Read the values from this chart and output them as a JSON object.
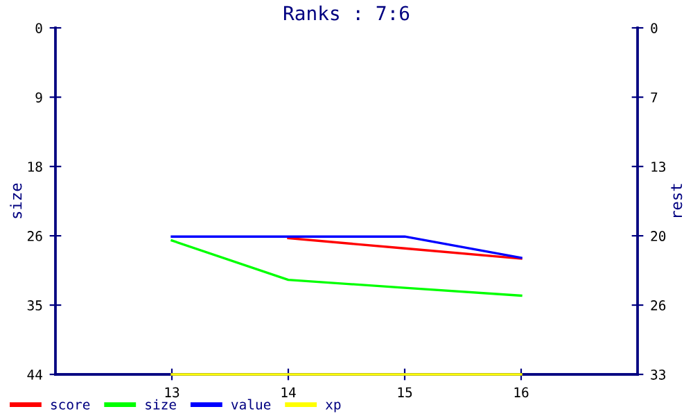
{
  "chart_data": {
    "type": "line",
    "title": "Ranks : 7:6",
    "ylabel": "size",
    "y2label": "rest",
    "x": [
      13,
      14,
      15,
      16
    ],
    "xlim": [
      12,
      17
    ],
    "xticks": [
      13,
      14,
      15,
      16
    ],
    "ylim": [
      44,
      0
    ],
    "yticks": [
      {
        "value": 0,
        "label": "0"
      },
      {
        "value": 8.8,
        "label": "9"
      },
      {
        "value": 17.6,
        "label": "18"
      },
      {
        "value": 26.4,
        "label": "26"
      },
      {
        "value": 35.2,
        "label": "35"
      },
      {
        "value": 44,
        "label": "44"
      }
    ],
    "y2lim": [
      33,
      0
    ],
    "y2ticks": [
      {
        "value": 0,
        "label": "0"
      },
      {
        "value": 6.6,
        "label": "7"
      },
      {
        "value": 13.2,
        "label": "13"
      },
      {
        "value": 19.8,
        "label": "20"
      },
      {
        "value": 26.4,
        "label": "26"
      },
      {
        "value": 33,
        "label": "33"
      }
    ],
    "series": [
      {
        "name": "score",
        "color": "#ff0000",
        "values": [
          null,
          26.7,
          28.0,
          29.3
        ]
      },
      {
        "name": "size",
        "color": "#00ff00",
        "values": [
          27.0,
          32.0,
          33.0,
          34.0
        ]
      },
      {
        "name": "value",
        "color": "#0000ff",
        "values": [
          26.5,
          26.5,
          26.5,
          29.2
        ]
      },
      {
        "name": "xp",
        "color": "#ffff00",
        "values": [
          44,
          44,
          44,
          44
        ]
      }
    ],
    "legend": "bottom left",
    "grid": false,
    "marker": "none",
    "line_style": "solid"
  }
}
